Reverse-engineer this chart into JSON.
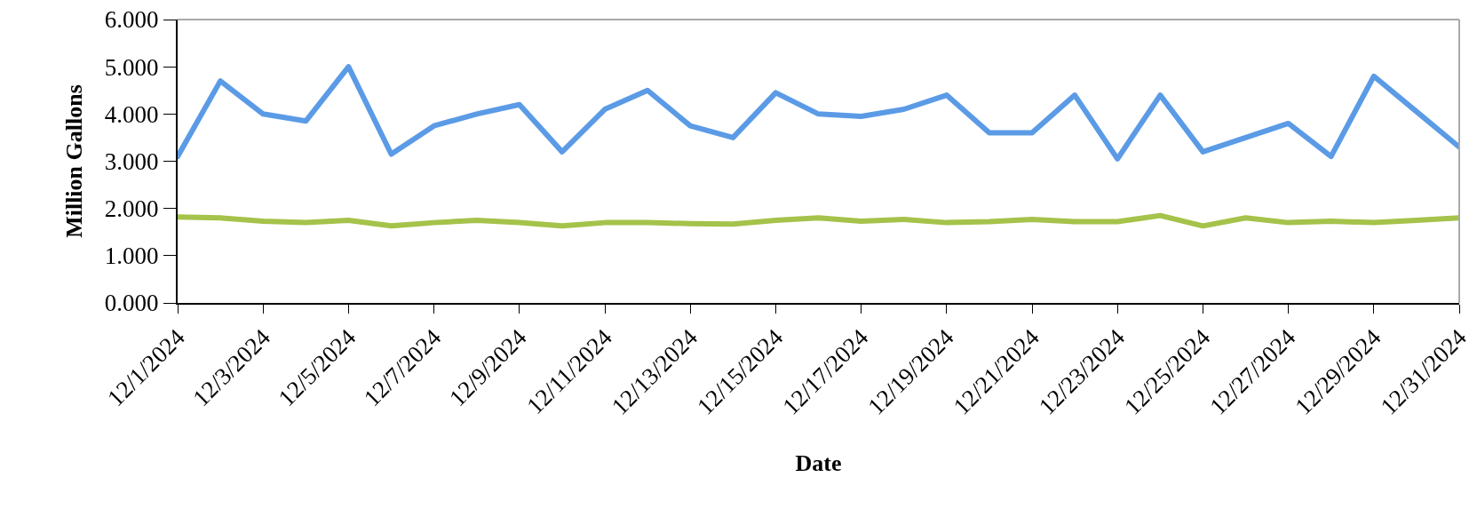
{
  "chart_data": {
    "type": "line",
    "xlabel": "Date",
    "ylabel": "Million Gallons",
    "categories": [
      "12/1/2024",
      null,
      "12/3/2024",
      null,
      "12/5/2024",
      null,
      "12/7/2024",
      null,
      "12/9/2024",
      null,
      "12/11/2024",
      null,
      "12/13/2024",
      null,
      "12/15/2024",
      null,
      "12/17/2024",
      null,
      "12/19/2024",
      null,
      "12/21/2024",
      null,
      "12/23/2024",
      null,
      "12/25/2024",
      null,
      "12/27/2024",
      null,
      "12/29/2024",
      null,
      "12/31/2024"
    ],
    "series": [
      {
        "color": "#5b9be6",
        "values": [
          3.1,
          4.7,
          4.0,
          3.85,
          5.0,
          3.15,
          3.75,
          4.0,
          4.2,
          3.2,
          4.1,
          4.5,
          3.75,
          3.5,
          4.45,
          4.0,
          3.95,
          4.1,
          4.4,
          3.6,
          3.6,
          4.4,
          3.05,
          4.4,
          3.2,
          3.5,
          3.8,
          3.1,
          4.8,
          4.05,
          3.3
        ]
      },
      {
        "color": "#a5c24a",
        "values": [
          1.82,
          1.8,
          1.73,
          1.7,
          1.75,
          1.63,
          1.7,
          1.75,
          1.7,
          1.63,
          1.7,
          1.7,
          1.68,
          1.67,
          1.75,
          1.8,
          1.73,
          1.77,
          1.7,
          1.72,
          1.77,
          1.72,
          1.72,
          1.85,
          1.63,
          1.8,
          1.7,
          1.73,
          1.7,
          1.75,
          1.8
        ]
      }
    ],
    "ylim": [
      0,
      6
    ],
    "yticks": [
      {
        "value": 0,
        "label": "0.000"
      },
      {
        "value": 1,
        "label": "1.000"
      },
      {
        "value": 2,
        "label": "2.000"
      },
      {
        "value": 3,
        "label": "3.000"
      },
      {
        "value": 4,
        "label": "4.000"
      },
      {
        "value": 5,
        "label": "5.000"
      },
      {
        "value": 6,
        "label": "6.000"
      }
    ],
    "grid": false,
    "marker": "none",
    "line_style": "solid"
  }
}
